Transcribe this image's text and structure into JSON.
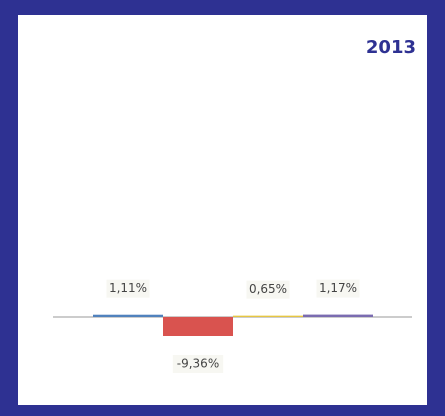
{
  "chart_data": {
    "type": "bar",
    "title": "2013",
    "categories": [
      null,
      null,
      null,
      null
    ],
    "values": [
      1.11,
      -9.36,
      0.65,
      1.17
    ],
    "value_labels": [
      "1,11%",
      "-9,36%",
      "0,65%",
      "1,17%"
    ],
    "colors": [
      "#4f81bd",
      "#d9534f",
      "#e8c840",
      "#7a6bb0"
    ],
    "ylim": [
      -10,
      2
    ]
  }
}
